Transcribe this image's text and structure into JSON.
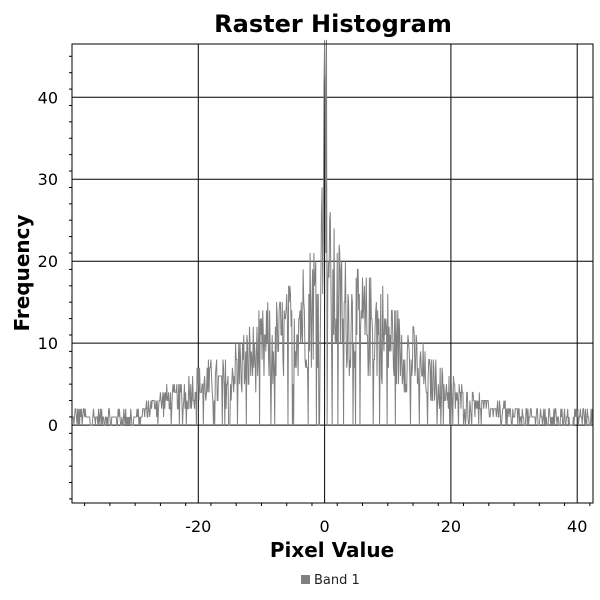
{
  "chart_data": {
    "type": "line",
    "title": "Raster Histogram",
    "xlabel": "Pixel Value",
    "ylabel": "Frequency",
    "xlim": [
      -40,
      42.5
    ],
    "ylim": [
      -9.5,
      46.5
    ],
    "x_ticks": [
      -20,
      0,
      20,
      40
    ],
    "y_ticks": [
      0,
      10,
      20,
      30,
      40
    ],
    "grid": true,
    "legend_position": "bottom-center",
    "series": [
      {
        "name": "Band 1",
        "color": "#808080",
        "x": [
          -40,
          -38,
          -36,
          -34,
          -32,
          -30,
          -28,
          -26,
          -24,
          -22,
          -20,
          -18,
          -16,
          -14,
          -12,
          -10,
          -8,
          -6,
          -4,
          -3,
          -2,
          -1,
          -0.5,
          0,
          0.5,
          1,
          2,
          3,
          4,
          6,
          8,
          10,
          12,
          14,
          16,
          18,
          20,
          22,
          24,
          26,
          28,
          30,
          32,
          34,
          36,
          38,
          40,
          42
        ],
        "y": [
          1,
          1,
          1,
          1,
          1,
          1,
          2,
          3,
          3,
          4,
          5,
          5,
          5,
          7,
          8,
          9,
          10,
          11,
          13,
          14,
          15,
          16,
          19,
          47,
          22,
          16,
          15,
          14,
          13,
          12,
          12,
          11,
          9,
          8,
          6,
          5,
          4,
          3,
          3,
          2,
          2,
          1,
          1,
          1,
          1,
          1,
          1,
          1
        ]
      }
    ]
  }
}
